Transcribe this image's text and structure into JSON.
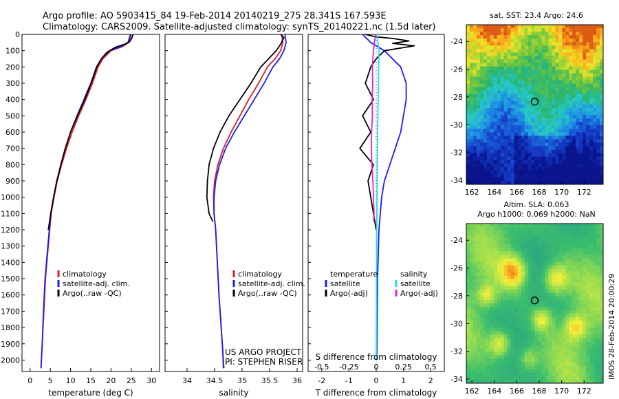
{
  "header": {
    "line1": "Argo profile: AO 5903415_84 19-Feb-2014 20140219_275 28.341S 167.593E",
    "line2": "Climatology: CARS2009. Satellite-adjusted climatology: synTS_20140221.nc (1.5d later)"
  },
  "credit": {
    "line1": "US ARGO PROJECT",
    "line2": "PI: STEPHEN RISER"
  },
  "stamp": "IMOS 28-Feb-2014 20:00:29",
  "colors": {
    "climatology": "#e41a1c",
    "satellite": "#1a1aff",
    "argo": "#000000",
    "satellite_s": "#22dde8",
    "argo_s": "#e020e0"
  },
  "chart_data": [
    {
      "type": "line",
      "xlabel": "temperature (deg C)",
      "xlim": [
        -2,
        32
      ],
      "ylim": [
        2070,
        0
      ],
      "xticks": [
        "0",
        "5",
        "10",
        "15",
        "20",
        "25",
        "30"
      ],
      "yticks": [
        "0",
        "100",
        "200",
        "300",
        "400",
        "500",
        "600",
        "700",
        "800",
        "900",
        "1000",
        "1100",
        "1200",
        "1300",
        "1400",
        "1500",
        "1600",
        "1700",
        "1800",
        "1900",
        "2000"
      ],
      "legend": [
        "climatology",
        "satellite-adj. clim.",
        "Argo(..raw -QC)"
      ],
      "series": [
        {
          "name": "climatology",
          "color": "#e41a1c",
          "points": [
            [
              25.0,
              0
            ],
            [
              24.4,
              50
            ],
            [
              22.8,
              75
            ],
            [
              20.0,
              100
            ],
            [
              18.0,
              150
            ],
            [
              16.8,
              200
            ],
            [
              15.4,
              300
            ],
            [
              13.8,
              400
            ],
            [
              12.0,
              500
            ],
            [
              10.4,
              600
            ],
            [
              9.0,
              700
            ],
            [
              7.8,
              800
            ],
            [
              6.7,
              900
            ],
            [
              5.9,
              1000
            ],
            [
              5.2,
              1100
            ],
            [
              4.5,
              1300
            ],
            [
              3.8,
              1500
            ],
            [
              3.4,
              1700
            ],
            [
              3.0,
              1900
            ],
            [
              2.8,
              2000
            ],
            [
              2.7,
              2050
            ]
          ]
        },
        {
          "name": "satellite-adj. clim.",
          "color": "#1a1aff",
          "points": [
            [
              24.8,
              0
            ],
            [
              24.2,
              50
            ],
            [
              22.4,
              75
            ],
            [
              19.6,
              100
            ],
            [
              17.6,
              150
            ],
            [
              16.4,
              200
            ],
            [
              15.0,
              300
            ],
            [
              13.3,
              400
            ],
            [
              11.6,
              500
            ],
            [
              10.0,
              600
            ],
            [
              8.7,
              700
            ],
            [
              7.6,
              800
            ],
            [
              6.6,
              900
            ],
            [
              5.8,
              1000
            ],
            [
              5.1,
              1100
            ],
            [
              4.4,
              1300
            ],
            [
              3.7,
              1500
            ],
            [
              3.3,
              1700
            ],
            [
              3.0,
              1900
            ],
            [
              2.8,
              2000
            ],
            [
              2.7,
              2050
            ]
          ]
        },
        {
          "name": "Argo(..raw -QC)",
          "color": "#000000",
          "points": [
            [
              25.4,
              0
            ],
            [
              25.2,
              20
            ],
            [
              24.6,
              45
            ],
            [
              23.4,
              60
            ],
            [
              21.0,
              80
            ],
            [
              19.0,
              110
            ],
            [
              17.6,
              150
            ],
            [
              16.5,
              200
            ],
            [
              15.1,
              300
            ],
            [
              13.5,
              400
            ],
            [
              11.7,
              500
            ],
            [
              10.0,
              600
            ],
            [
              8.7,
              700
            ],
            [
              7.6,
              800
            ],
            [
              6.6,
              900
            ],
            [
              5.8,
              1000
            ],
            [
              5.1,
              1100
            ],
            [
              4.5,
              1200
            ]
          ]
        }
      ]
    },
    {
      "type": "line",
      "xlabel": "salinity",
      "xlim": [
        33.6,
        36.1
      ],
      "ylim": [
        2070,
        0
      ],
      "xticks": [
        "34",
        "34.5",
        "35",
        "35.5",
        "36"
      ],
      "legend": [
        "climatology",
        "satellite-adj. clim.",
        "Argo(..raw -QC)"
      ],
      "series": [
        {
          "name": "climatology",
          "color": "#e41a1c",
          "points": [
            [
              35.72,
              0
            ],
            [
              35.74,
              50
            ],
            [
              35.7,
              100
            ],
            [
              35.6,
              150
            ],
            [
              35.46,
              200
            ],
            [
              35.3,
              300
            ],
            [
              35.12,
              400
            ],
            [
              34.96,
              500
            ],
            [
              34.8,
              600
            ],
            [
              34.66,
              700
            ],
            [
              34.56,
              800
            ],
            [
              34.5,
              900
            ],
            [
              34.48,
              1000
            ],
            [
              34.49,
              1100
            ],
            [
              34.52,
              1200
            ],
            [
              34.55,
              1400
            ],
            [
              34.58,
              1600
            ],
            [
              34.62,
              1800
            ],
            [
              34.65,
              1950
            ],
            [
              34.67,
              2050
            ]
          ]
        },
        {
          "name": "satellite-adj. clim.",
          "color": "#1a1aff",
          "points": [
            [
              35.78,
              0
            ],
            [
              35.8,
              50
            ],
            [
              35.76,
              100
            ],
            [
              35.68,
              150
            ],
            [
              35.56,
              200
            ],
            [
              35.4,
              300
            ],
            [
              35.22,
              400
            ],
            [
              35.04,
              500
            ],
            [
              34.86,
              600
            ],
            [
              34.7,
              700
            ],
            [
              34.59,
              800
            ],
            [
              34.52,
              900
            ],
            [
              34.49,
              1000
            ],
            [
              34.49,
              1100
            ],
            [
              34.52,
              1200
            ],
            [
              34.55,
              1400
            ],
            [
              34.58,
              1600
            ],
            [
              34.62,
              1800
            ],
            [
              34.65,
              1950
            ],
            [
              34.66,
              2050
            ]
          ]
        },
        {
          "name": "Argo(..raw -QC)",
          "color": "#000000",
          "points": [
            [
              35.7,
              0
            ],
            [
              35.76,
              20
            ],
            [
              35.7,
              60
            ],
            [
              35.62,
              100
            ],
            [
              35.48,
              150
            ],
            [
              35.34,
              200
            ],
            [
              35.16,
              300
            ],
            [
              34.96,
              400
            ],
            [
              34.76,
              500
            ],
            [
              34.6,
              600
            ],
            [
              34.48,
              700
            ],
            [
              34.4,
              800
            ],
            [
              34.37,
              900
            ],
            [
              34.36,
              1000
            ],
            [
              34.4,
              1100
            ],
            [
              34.47,
              1150
            ]
          ]
        }
      ]
    },
    {
      "type": "line",
      "xlabel": "T difference from climatology",
      "xlabel_top": "S difference from climatology",
      "xlim": [
        -2.5,
        2.5
      ],
      "ylim": [
        2070,
        0
      ],
      "xticks": [
        "-2",
        "-1",
        "0",
        "1",
        "2"
      ],
      "xticks_top": [
        "-0.5",
        "-0.25",
        "0",
        "0.25",
        "0.5"
      ],
      "legend_left_title": "temperature",
      "legend_right_title": "salinity",
      "legend": [
        "satellite",
        "Argo(-adj)",
        "satellite",
        "Argo(-adj)"
      ],
      "series": [
        {
          "name": "satellite",
          "color": "#1a1aff",
          "points": [
            [
              -0.5,
              0
            ],
            [
              -0.2,
              50
            ],
            [
              0.3,
              100
            ],
            [
              0.9,
              200
            ],
            [
              1.1,
              300
            ],
            [
              1.1,
              400
            ],
            [
              1.0,
              500
            ],
            [
              0.9,
              600
            ],
            [
              0.7,
              700
            ],
            [
              0.5,
              800
            ],
            [
              0.3,
              900
            ],
            [
              0.2,
              1000
            ],
            [
              0.1,
              1200
            ],
            [
              0.05,
              1500
            ],
            [
              0.03,
              1800
            ],
            [
              0.02,
              2000
            ]
          ]
        },
        {
          "name": "Argo(-adj)",
          "color": "#000000",
          "points": [
            [
              -0.4,
              0
            ],
            [
              0.0,
              15
            ],
            [
              0.6,
              25
            ],
            [
              1.2,
              40
            ],
            [
              0.6,
              55
            ],
            [
              1.4,
              70
            ],
            [
              0.3,
              100
            ],
            [
              0.0,
              150
            ],
            [
              -0.2,
              200
            ],
            [
              -0.4,
              300
            ],
            [
              -0.1,
              400
            ],
            [
              -0.5,
              500
            ],
            [
              -0.2,
              600
            ],
            [
              -0.6,
              700
            ],
            [
              -0.1,
              800
            ],
            [
              -0.3,
              900
            ],
            [
              -0.2,
              1000
            ],
            [
              -0.1,
              1100
            ],
            [
              0.0,
              1200
            ]
          ]
        },
        {
          "name": "satellite (S)",
          "color": "#22dde8",
          "points": [
            [
              0.02,
              0
            ],
            [
              0.06,
              50
            ],
            [
              0.1,
              100
            ],
            [
              0.09,
              200
            ],
            [
              0.08,
              300
            ],
            [
              0.07,
              400
            ],
            [
              0.06,
              500
            ],
            [
              0.05,
              600
            ],
            [
              0.04,
              800
            ],
            [
              0.03,
              1000
            ],
            [
              0.02,
              1200
            ],
            [
              0.01,
              1600
            ],
            [
              0.0,
              2000
            ]
          ]
        },
        {
          "name": "Argo(-adj) (S)",
          "color": "#e020e0",
          "points": [
            [
              -0.02,
              0
            ],
            [
              -0.05,
              30
            ],
            [
              -0.1,
              100
            ],
            [
              -0.12,
              150
            ],
            [
              -0.14,
              200
            ],
            [
              -0.13,
              300
            ],
            [
              -0.15,
              400
            ],
            [
              -0.14,
              500
            ],
            [
              -0.17,
              600
            ],
            [
              -0.18,
              700
            ],
            [
              -0.16,
              800
            ],
            [
              -0.12,
              900
            ],
            [
              -0.1,
              1000
            ],
            [
              -0.08,
              1100
            ],
            [
              -0.09,
              1150
            ]
          ]
        }
      ]
    },
    {
      "type": "heatmap",
      "title": "sat. SST: 23.4  Argo: 24.6",
      "xlim": [
        161.5,
        173.7
      ],
      "ylim": [
        -34.3,
        -22.8
      ],
      "xticks": [
        "162",
        "164",
        "166",
        "168",
        "170",
        "172"
      ],
      "yticks": [
        "-24",
        "-26",
        "-28",
        "-30",
        "-32",
        "-34"
      ],
      "argo_position": {
        "lon": 167.593,
        "lat": -28.341
      }
    },
    {
      "type": "heatmap",
      "title": "Altim. SLA: 0.063",
      "subtitle": "Argo h1000: 0.069  h2000: NaN",
      "xlim": [
        161.5,
        173.7
      ],
      "ylim": [
        -34.3,
        -22.8
      ],
      "xticks": [
        "162",
        "164",
        "166",
        "168",
        "170",
        "172"
      ],
      "yticks": [
        "-24",
        "-26",
        "-28",
        "-30",
        "-32",
        "-34"
      ],
      "argo_position": {
        "lon": 167.593,
        "lat": -28.341
      }
    }
  ]
}
